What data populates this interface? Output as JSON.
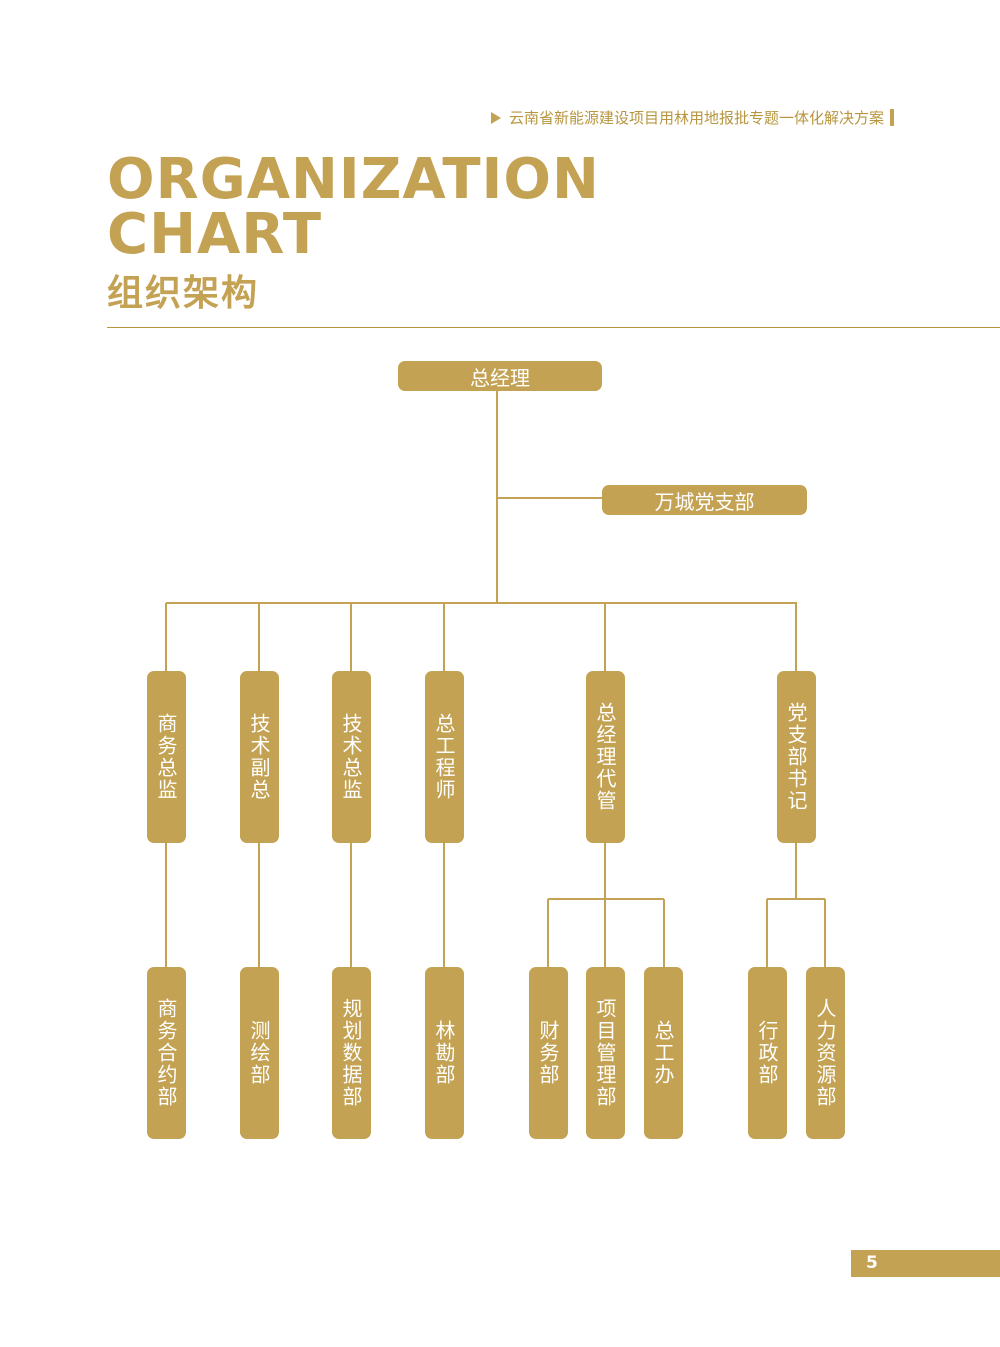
{
  "header": {
    "subtitle": "云南省新能源建设项目用林用地报批专题一体化解决方案"
  },
  "title": {
    "en_line1": "ORGANIZATION",
    "en_line2": "CHART",
    "cn": "组织架构"
  },
  "org": {
    "top": "总经理",
    "party_branch": "万城党支部",
    "level2": [
      "商务总监",
      "技术副总",
      "技术总监",
      "总工程师",
      "总经理代管",
      "党支部书记"
    ],
    "level3": [
      "商务合约部",
      "测绘部",
      "规划数据部",
      "林勘部",
      "财务部",
      "项目管理部",
      "总工办",
      "行政部",
      "人力资源部"
    ]
  },
  "page": {
    "number": "5"
  },
  "colors": {
    "accent": "#c4a253"
  }
}
